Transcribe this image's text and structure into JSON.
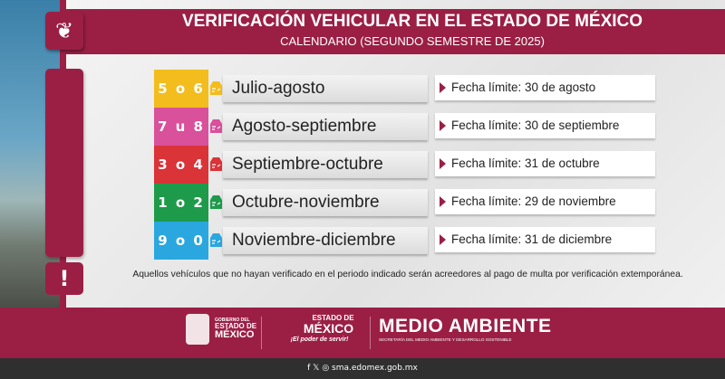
{
  "header": {
    "title": "VERIFICACIÓN VEHICULAR EN EL ESTADO DE MÉXICO",
    "subtitle": "CALENDARIO (SEGUNDO SEMESTRE DE 2025)"
  },
  "rows": [
    {
      "digits": "5 o 6",
      "period": "Julio-agosto",
      "deadline": "Fecha límite: 30 de agosto",
      "color": "#f2bd1d"
    },
    {
      "digits": "7 u 8",
      "period": "Agosto-septiembre",
      "deadline": "Fecha límite: 30 de septiembre",
      "color": "#d9509b"
    },
    {
      "digits": "3 o 4",
      "period": "Septiembre-octubre",
      "deadline": "Fecha límite: 31 de octubre",
      "color": "#da3338"
    },
    {
      "digits": "1 o 2",
      "period": "Octubre-noviembre",
      "deadline": "Fecha límite: 29 de noviembre",
      "color": "#1e9a4b"
    },
    {
      "digits": "9 o 0",
      "period": "Noviembre-diciembre",
      "deadline": "Fecha límite: 31 de diciembre",
      "color": "#2aa7df"
    }
  ],
  "warning": {
    "icon": "!",
    "text": "Aquellos vehículos que no hayan verificado en el periodo indicado serán acreedores al pago de multa por verificación extemporánea."
  },
  "footer": {
    "gov": {
      "line1": "GOBIERNO DEL",
      "line2": "ESTADO DE",
      "line3": "MÉXICO"
    },
    "state": {
      "line1": "ESTADO DE",
      "line2": "MÉXICO",
      "slogan": "¡El poder de servir!"
    },
    "dept": {
      "name": "MEDIO AMBIENTE",
      "sub": "SECRETARÍA DEL MEDIO AMBIENTE Y DESARROLLO SOSTENIBLE"
    },
    "social": "sma.edomex.gob.mx"
  },
  "accent": "#9b1f45"
}
